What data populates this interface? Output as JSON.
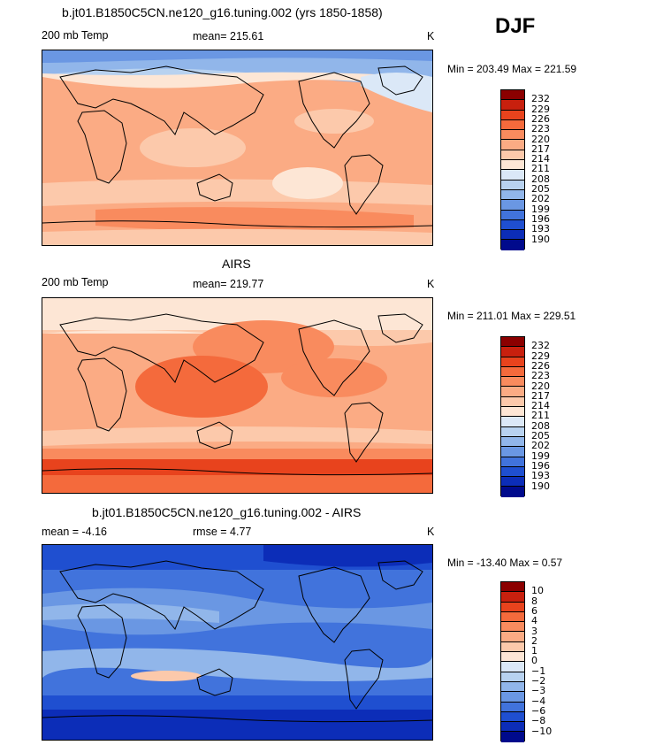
{
  "season": "DJF",
  "panels": [
    {
      "title": "b.jt01.B1850C5CN.ne120_g16.tuning.002 (yrs 1850-1858)",
      "left_label": "200 mb Temp",
      "center_label": "mean= 215.61",
      "unit": "K",
      "minmax": "Min = 203.49 Max = 221.59",
      "colorbar_labels": [
        "232",
        "229",
        "226",
        "223",
        "220",
        "217",
        "214",
        "211",
        "208",
        "205",
        "202",
        "199",
        "196",
        "193",
        "190"
      ],
      "colors": [
        "#8b0000",
        "#c8200e",
        "#e8431d",
        "#f46a3c",
        "#f98b5e",
        "#fbab84",
        "#fcc9ab",
        "#fde6d5",
        "#dbe8f7",
        "#b8d2f0",
        "#91b6ea",
        "#6a97e3",
        "#4173dc",
        "#1f4fd0",
        "#0c2db8",
        "#000a8c"
      ]
    },
    {
      "title": "AIRS",
      "left_label": "200 mb Temp",
      "center_label": "mean= 219.77",
      "unit": "K",
      "minmax": "Min = 211.01 Max = 229.51",
      "colorbar_labels": [
        "232",
        "229",
        "226",
        "223",
        "220",
        "217",
        "214",
        "211",
        "208",
        "205",
        "202",
        "199",
        "196",
        "193",
        "190"
      ],
      "colors": [
        "#8b0000",
        "#c8200e",
        "#e8431d",
        "#f46a3c",
        "#f98b5e",
        "#fbab84",
        "#fcc9ab",
        "#fde6d5",
        "#dbe8f7",
        "#b8d2f0",
        "#91b6ea",
        "#6a97e3",
        "#4173dc",
        "#1f4fd0",
        "#0c2db8",
        "#000a8c"
      ]
    },
    {
      "title": "b.jt01.B1850C5CN.ne120_g16.tuning.002 - AIRS",
      "left_label": "mean = -4.16",
      "center_label": "rmse = 4.77",
      "unit": "K",
      "minmax": "Min = -13.40 Max = 0.57",
      "colorbar_labels": [
        "10",
        "8",
        "6",
        "4",
        "3",
        "2",
        "1",
        "0",
        "-1",
        "-2",
        "-3",
        "-4",
        "-6",
        "-8",
        "-10"
      ],
      "colors": [
        "#8b0000",
        "#c8200e",
        "#e8431d",
        "#f46a3c",
        "#f98b5e",
        "#fbab84",
        "#fcc9ab",
        "#fde6d5",
        "#dbe8f7",
        "#b8d2f0",
        "#91b6ea",
        "#6a97e3",
        "#4173dc",
        "#1f4fd0",
        "#0c2db8",
        "#000a8c"
      ]
    }
  ]
}
